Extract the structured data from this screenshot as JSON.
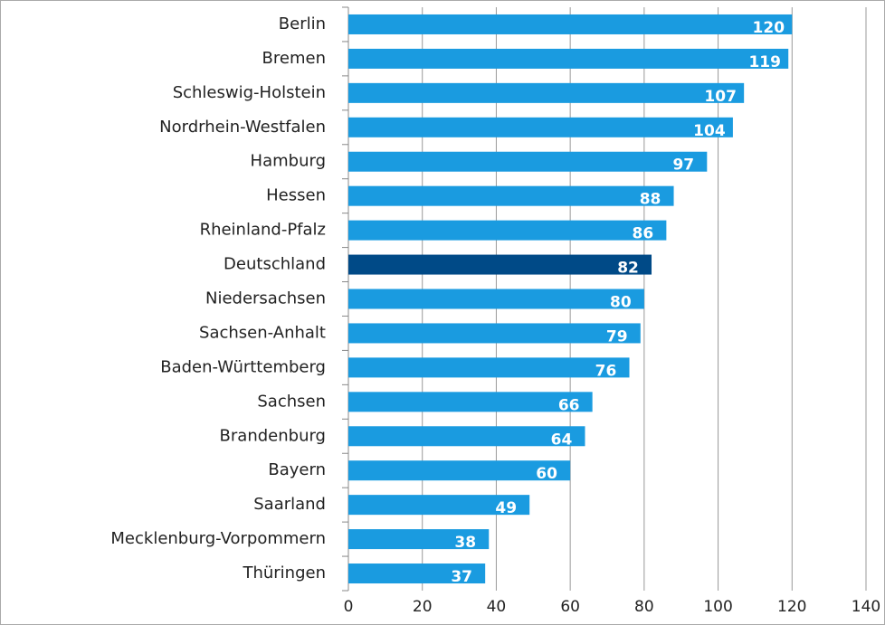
{
  "chart_data": {
    "type": "barh",
    "categories": [
      "Berlin",
      "Bremen",
      "Schleswig-Holstein",
      "Nordrhein-Westfalen",
      "Hamburg",
      "Hessen",
      "Rheinland-Pfalz",
      "Deutschland",
      "Niedersachsen",
      "Sachsen-Anhalt",
      "Baden-Württemberg",
      "Sachsen",
      "Brandenburg",
      "Bayern",
      "Saarland",
      "Mecklenburg-Vorpommern",
      "Thüringen"
    ],
    "values": [
      120,
      119,
      107,
      104,
      97,
      88,
      86,
      82,
      80,
      79,
      76,
      66,
      64,
      60,
      49,
      38,
      37
    ],
    "colors": [
      "#1a9be0",
      "#1a9be0",
      "#1a9be0",
      "#1a9be0",
      "#1a9be0",
      "#1a9be0",
      "#1a9be0",
      "#004a87",
      "#1a9be0",
      "#1a9be0",
      "#1a9be0",
      "#1a9be0",
      "#1a9be0",
      "#1a9be0",
      "#1a9be0",
      "#1a9be0",
      "#1a9be0"
    ],
    "xlim": [
      0,
      140
    ],
    "xticks": [
      0,
      20,
      40,
      60,
      80,
      100,
      120,
      140
    ],
    "grid": true
  }
}
